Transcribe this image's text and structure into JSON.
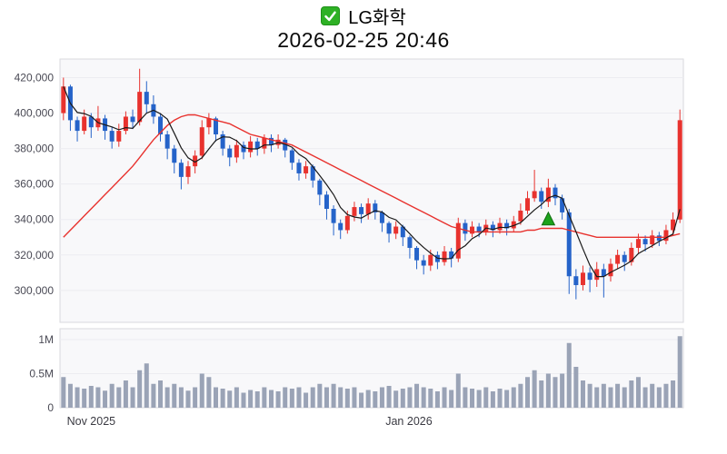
{
  "header": {
    "title": "LG화학",
    "datetime": "2026-02-25 20:46"
  },
  "chart_data": {
    "type": "candlestick",
    "title": "LG화학",
    "subtitle": "2026-02-25 20:46",
    "legend_position": "none",
    "grid": true,
    "y_axis": {
      "min": 282000,
      "max": 430500,
      "ticks": [
        {
          "label": "420,000",
          "value": 420000
        },
        {
          "label": "400,000",
          "value": 400000
        },
        {
          "label": "380,000",
          "value": 380000
        },
        {
          "label": "360,000",
          "value": 360000
        },
        {
          "label": "340,000",
          "value": 340000
        },
        {
          "label": "320,000",
          "value": 320000
        },
        {
          "label": "300,000",
          "value": 300000
        }
      ]
    },
    "volume_axis": {
      "unit": "millions",
      "ticks": [
        {
          "label": "1M",
          "value": 1.0
        },
        {
          "label": "0.5M",
          "value": 0.5
        },
        {
          "label": "0",
          "value": 0
        }
      ]
    },
    "x_axis": {
      "ticks": [
        {
          "label": "Nov 2025",
          "index": 1
        },
        {
          "label": "Jan 2026",
          "index": 47
        }
      ]
    },
    "colors": {
      "up": "#e8322e",
      "down": "#2563c9",
      "ma_short": "#1a1a1a",
      "ma_long": "#e8322e",
      "volume": "#9aa3b6",
      "marker": "#1ca21c",
      "marker_edge": "#116e11",
      "panel": "#f8f8fa",
      "panel_border": "#d9d9de",
      "grid": "#ececf1",
      "label": "#4a4a55",
      "checkbox_green": "#2eb125"
    },
    "marker": {
      "index": 70,
      "value": 340000,
      "shape": "triangle-up"
    },
    "ohlcv_format": [
      "open",
      "high",
      "low",
      "close",
      "volume_millions"
    ],
    "candles": [
      [
        400000,
        420000,
        396000,
        415000,
        0.45
      ],
      [
        415000,
        416000,
        390000,
        396000,
        0.35
      ],
      [
        396000,
        398000,
        384000,
        390000,
        0.3
      ],
      [
        390000,
        402000,
        388000,
        398000,
        0.28
      ],
      [
        398000,
        400000,
        386000,
        392000,
        0.32
      ],
      [
        392000,
        404000,
        390000,
        397000,
        0.3
      ],
      [
        397000,
        399000,
        385000,
        390000,
        0.25
      ],
      [
        390000,
        392000,
        380000,
        384000,
        0.35
      ],
      [
        384000,
        394000,
        381000,
        390000,
        0.3
      ],
      [
        390000,
        401000,
        388000,
        398000,
        0.4
      ],
      [
        398000,
        402000,
        391000,
        395000,
        0.3
      ],
      [
        395000,
        425000,
        393000,
        412000,
        0.55
      ],
      [
        412000,
        418000,
        400000,
        405000,
        0.65
      ],
      [
        405000,
        410000,
        394000,
        398000,
        0.35
      ],
      [
        398000,
        400000,
        384000,
        388000,
        0.4
      ],
      [
        388000,
        390000,
        374000,
        380000,
        0.3
      ],
      [
        380000,
        382000,
        366000,
        372000,
        0.35
      ],
      [
        372000,
        374000,
        357000,
        364000,
        0.3
      ],
      [
        364000,
        373000,
        360000,
        370000,
        0.25
      ],
      [
        370000,
        379000,
        366000,
        376000,
        0.3
      ],
      [
        376000,
        396000,
        374000,
        392000,
        0.5
      ],
      [
        392000,
        400000,
        388000,
        397000,
        0.45
      ],
      [
        397000,
        398000,
        384000,
        388000,
        0.3
      ],
      [
        388000,
        390000,
        376000,
        380000,
        0.28
      ],
      [
        380000,
        382000,
        370000,
        375000,
        0.25
      ],
      [
        375000,
        385000,
        372000,
        382000,
        0.3
      ],
      [
        382000,
        384000,
        374000,
        378000,
        0.22
      ],
      [
        378000,
        387000,
        375000,
        384000,
        0.26
      ],
      [
        384000,
        386000,
        376000,
        380000,
        0.24
      ],
      [
        380000,
        388000,
        377000,
        386000,
        0.3
      ],
      [
        386000,
        388000,
        378000,
        382000,
        0.26
      ],
      [
        382000,
        388000,
        380000,
        385000,
        0.24
      ],
      [
        385000,
        386000,
        375000,
        379000,
        0.3
      ],
      [
        379000,
        380000,
        368000,
        372000,
        0.28
      ],
      [
        372000,
        374000,
        362000,
        366000,
        0.3
      ],
      [
        366000,
        373000,
        363000,
        370000,
        0.22
      ],
      [
        370000,
        371000,
        358000,
        362000,
        0.3
      ],
      [
        362000,
        363000,
        348000,
        354000,
        0.35
      ],
      [
        354000,
        356000,
        340000,
        346000,
        0.3
      ],
      [
        346000,
        348000,
        331000,
        338000,
        0.35
      ],
      [
        338000,
        340000,
        329000,
        334000,
        0.3
      ],
      [
        334000,
        345000,
        332000,
        342000,
        0.28
      ],
      [
        342000,
        350000,
        339000,
        347000,
        0.3
      ],
      [
        347000,
        349000,
        338000,
        343000,
        0.22
      ],
      [
        343000,
        352000,
        340000,
        349000,
        0.26
      ],
      [
        349000,
        351000,
        340000,
        344000,
        0.24
      ],
      [
        344000,
        345000,
        333000,
        338000,
        0.3
      ],
      [
        338000,
        339000,
        327000,
        332000,
        0.32
      ],
      [
        332000,
        339000,
        329000,
        336000,
        0.25
      ],
      [
        336000,
        337000,
        325000,
        330000,
        0.28
      ],
      [
        330000,
        331000,
        318000,
        324000,
        0.3
      ],
      [
        324000,
        325000,
        312000,
        317000,
        0.35
      ],
      [
        317000,
        320000,
        309000,
        314000,
        0.3
      ],
      [
        314000,
        323000,
        311000,
        320000,
        0.28
      ],
      [
        320000,
        322000,
        312000,
        316000,
        0.24
      ],
      [
        316000,
        325000,
        314000,
        322000,
        0.3
      ],
      [
        322000,
        324000,
        313000,
        318000,
        0.26
      ],
      [
        318000,
        341000,
        316000,
        338000,
        0.5
      ],
      [
        338000,
        340000,
        328000,
        332000,
        0.3
      ],
      [
        332000,
        339000,
        330000,
        336000,
        0.28
      ],
      [
        336000,
        338000,
        330000,
        333000,
        0.26
      ],
      [
        333000,
        340000,
        331000,
        337000,
        0.3
      ],
      [
        337000,
        339000,
        330000,
        334000,
        0.24
      ],
      [
        334000,
        341000,
        332000,
        338000,
        0.28
      ],
      [
        338000,
        340000,
        331000,
        335000,
        0.26
      ],
      [
        335000,
        342000,
        333000,
        339000,
        0.3
      ],
      [
        339000,
        349000,
        337000,
        345000,
        0.35
      ],
      [
        345000,
        356000,
        343000,
        352000,
        0.45
      ],
      [
        352000,
        368000,
        350000,
        356000,
        0.55
      ],
      [
        356000,
        358000,
        346000,
        350000,
        0.4
      ],
      [
        350000,
        363000,
        347000,
        358000,
        0.5
      ],
      [
        358000,
        360000,
        348000,
        352000,
        0.45
      ],
      [
        352000,
        354000,
        340000,
        344000,
        0.5
      ],
      [
        344000,
        346000,
        298000,
        308000,
        0.95
      ],
      [
        308000,
        312000,
        295000,
        303000,
        0.6
      ],
      [
        303000,
        314000,
        300000,
        310000,
        0.4
      ],
      [
        310000,
        313000,
        299000,
        306000,
        0.35
      ],
      [
        306000,
        316000,
        302000,
        312000,
        0.3
      ],
      [
        312000,
        315000,
        296000,
        308000,
        0.35
      ],
      [
        308000,
        318000,
        305000,
        315000,
        0.3
      ],
      [
        315000,
        323000,
        312000,
        320000,
        0.35
      ],
      [
        320000,
        322000,
        311000,
        316000,
        0.3
      ],
      [
        316000,
        327000,
        314000,
        324000,
        0.4
      ],
      [
        324000,
        332000,
        321000,
        329000,
        0.45
      ],
      [
        329000,
        331000,
        322000,
        326000,
        0.3
      ],
      [
        326000,
        334000,
        324000,
        331000,
        0.35
      ],
      [
        331000,
        333000,
        325000,
        328000,
        0.3
      ],
      [
        328000,
        337000,
        326000,
        334000,
        0.35
      ],
      [
        334000,
        344000,
        331000,
        340000,
        0.4
      ],
      [
        340000,
        402000,
        338000,
        396000,
        1.05
      ]
    ],
    "ma_long": [
      330000,
      334000,
      338000,
      342000,
      346000,
      350000,
      354000,
      358000,
      362000,
      366000,
      370000,
      375000,
      380000,
      385000,
      389000,
      393000,
      396000,
      398000,
      399000,
      399000,
      398000,
      397000,
      396000,
      395000,
      394000,
      392000,
      390000,
      388000,
      387000,
      386000,
      385000,
      384000,
      383000,
      382000,
      380000,
      378000,
      376000,
      374000,
      372000,
      370000,
      368000,
      366000,
      364000,
      362000,
      360000,
      358000,
      356000,
      354000,
      352000,
      350000,
      348000,
      346000,
      344000,
      342000,
      340000,
      338000,
      336000,
      335000,
      334000,
      333000,
      333000,
      333000,
      333000,
      333000,
      333000,
      333000,
      333000,
      334000,
      334000,
      335000,
      335000,
      335000,
      335000,
      334000,
      333000,
      332000,
      331000,
      330000,
      330000,
      330000,
      330000,
      330000,
      330000,
      330000,
      330000,
      330000,
      330000,
      330000,
      331000,
      332000
    ],
    "ma_short_window": 5
  }
}
